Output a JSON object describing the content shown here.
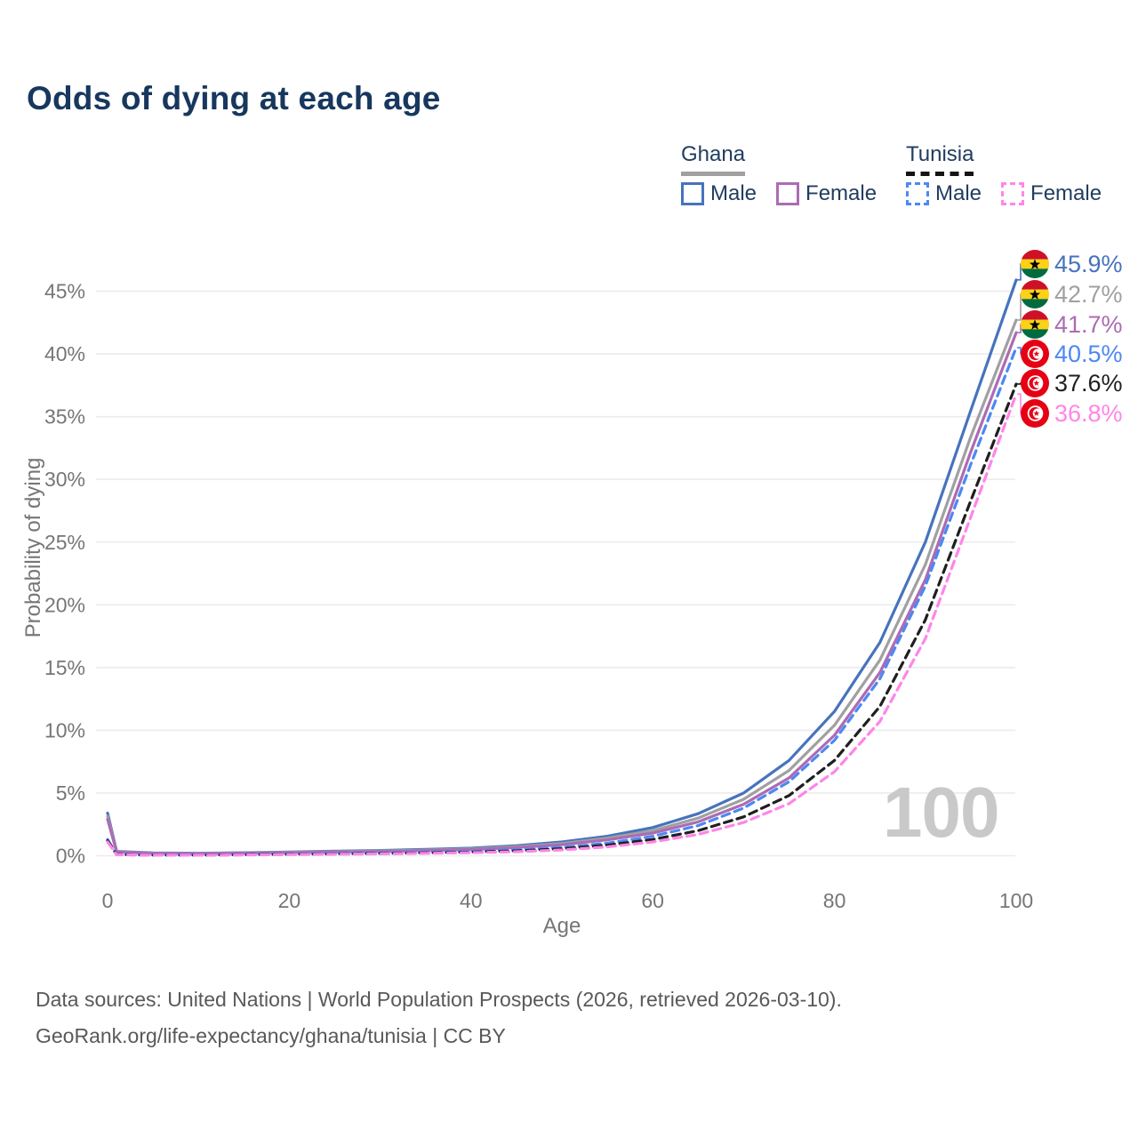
{
  "title": "Odds of dying at each age",
  "legend": {
    "groups": [
      {
        "name": "Ghana",
        "line_style": "solid",
        "underline_color": "#a0a0a0",
        "items": [
          {
            "label": "Male",
            "color": "#4673bd"
          },
          {
            "label": "Female",
            "color": "#ac6bb4"
          }
        ]
      },
      {
        "name": "Tunisia",
        "line_style": "dashed",
        "underline_color": "#141414",
        "items": [
          {
            "label": "Male",
            "color": "#4c88f4"
          },
          {
            "label": "Female",
            "color": "#ff85e8"
          }
        ]
      }
    ]
  },
  "watermark": "100",
  "footer": {
    "line1": "Data sources: United Nations | World Population Prospects (2026, retrieved 2026-03-10).",
    "line2": "GeoRank.org/life-expectancy/ghana/tunisia | CC BY"
  },
  "chart_data": {
    "type": "line",
    "title": "Odds of dying at each age",
    "xlabel": "Age",
    "ylabel": "Probability of dying",
    "xlim": [
      0,
      100
    ],
    "ylim": [
      0,
      47
    ],
    "grid": true,
    "legend_position": "top-right",
    "x_ticks": [
      0,
      20,
      40,
      60,
      80,
      100
    ],
    "y_tick_values": [
      0,
      5,
      10,
      15,
      20,
      25,
      30,
      35,
      40,
      45
    ],
    "y_tick_labels": [
      "0%",
      "5%",
      "10%",
      "15%",
      "20%",
      "25%",
      "30%",
      "35%",
      "40%",
      "45%"
    ],
    "ages": [
      0,
      1,
      5,
      10,
      15,
      20,
      25,
      30,
      35,
      40,
      45,
      50,
      55,
      60,
      65,
      70,
      75,
      80,
      85,
      90,
      95,
      100
    ],
    "series": [
      {
        "name": "Ghana Male",
        "country": "Ghana",
        "sex": "Male",
        "color": "#4673bd",
        "dash": "solid",
        "flag": "ghana",
        "end_label": "45.9%",
        "values": [
          3.4,
          0.35,
          0.22,
          0.2,
          0.24,
          0.3,
          0.36,
          0.42,
          0.5,
          0.6,
          0.8,
          1.1,
          1.55,
          2.25,
          3.35,
          5.0,
          7.6,
          11.5,
          17.0,
          25.0,
          35.5,
          45.9
        ]
      },
      {
        "name": "Ghana Both sexes",
        "country": "Ghana",
        "sex": "Both",
        "color": "#a0a0a0",
        "dash": "solid",
        "flag": "ghana",
        "end_label": "42.7%",
        "values": [
          3.15,
          0.32,
          0.2,
          0.18,
          0.22,
          0.27,
          0.32,
          0.38,
          0.45,
          0.54,
          0.72,
          0.98,
          1.4,
          2.0,
          3.0,
          4.5,
          6.8,
          10.4,
          15.6,
          23.2,
          33.4,
          42.7
        ]
      },
      {
        "name": "Ghana Female",
        "country": "Ghana",
        "sex": "Female",
        "color": "#ac6bb4",
        "dash": "solid",
        "flag": "ghana",
        "end_label": "41.7%",
        "values": [
          2.9,
          0.3,
          0.18,
          0.16,
          0.2,
          0.24,
          0.29,
          0.34,
          0.41,
          0.49,
          0.65,
          0.88,
          1.26,
          1.8,
          2.7,
          4.1,
          6.2,
          9.6,
          14.6,
          22.0,
          32.2,
          41.7
        ]
      },
      {
        "name": "Tunisia Male",
        "country": "Tunisia",
        "sex": "Male",
        "color": "#4c88f4",
        "dash": "dashed",
        "flag": "tunisia",
        "end_label": "40.5%",
        "values": [
          1.3,
          0.1,
          0.06,
          0.06,
          0.1,
          0.14,
          0.17,
          0.21,
          0.27,
          0.34,
          0.46,
          0.66,
          1.0,
          1.55,
          2.4,
          3.8,
          5.9,
          9.2,
          14.1,
          21.5,
          31.2,
          40.5
        ]
      },
      {
        "name": "Tunisia Both sexes",
        "country": "Tunisia",
        "sex": "Both",
        "color": "#1f1f1f",
        "dash": "dashed",
        "flag": "tunisia",
        "end_label": "37.6%",
        "values": [
          1.2,
          0.09,
          0.05,
          0.05,
          0.08,
          0.11,
          0.14,
          0.18,
          0.22,
          0.28,
          0.38,
          0.55,
          0.84,
          1.3,
          2.0,
          3.1,
          4.8,
          7.6,
          11.9,
          18.8,
          28.3,
          37.6
        ]
      },
      {
        "name": "Tunisia Female",
        "country": "Tunisia",
        "sex": "Female",
        "color": "#ff85e8",
        "dash": "dashed",
        "flag": "tunisia",
        "end_label": "36.8%",
        "values": [
          1.1,
          0.08,
          0.04,
          0.04,
          0.06,
          0.09,
          0.12,
          0.15,
          0.19,
          0.24,
          0.32,
          0.46,
          0.7,
          1.1,
          1.7,
          2.65,
          4.15,
          6.7,
          10.7,
          17.3,
          27.0,
          36.8
        ]
      }
    ],
    "flag_colors": {
      "ghana_red": "#ce1126",
      "ghana_gold": "#fcd116",
      "ghana_green": "#006b3f",
      "ghana_star": "#000000",
      "tunisia_red": "#e70013",
      "tunisia_white": "#ffffff"
    }
  }
}
